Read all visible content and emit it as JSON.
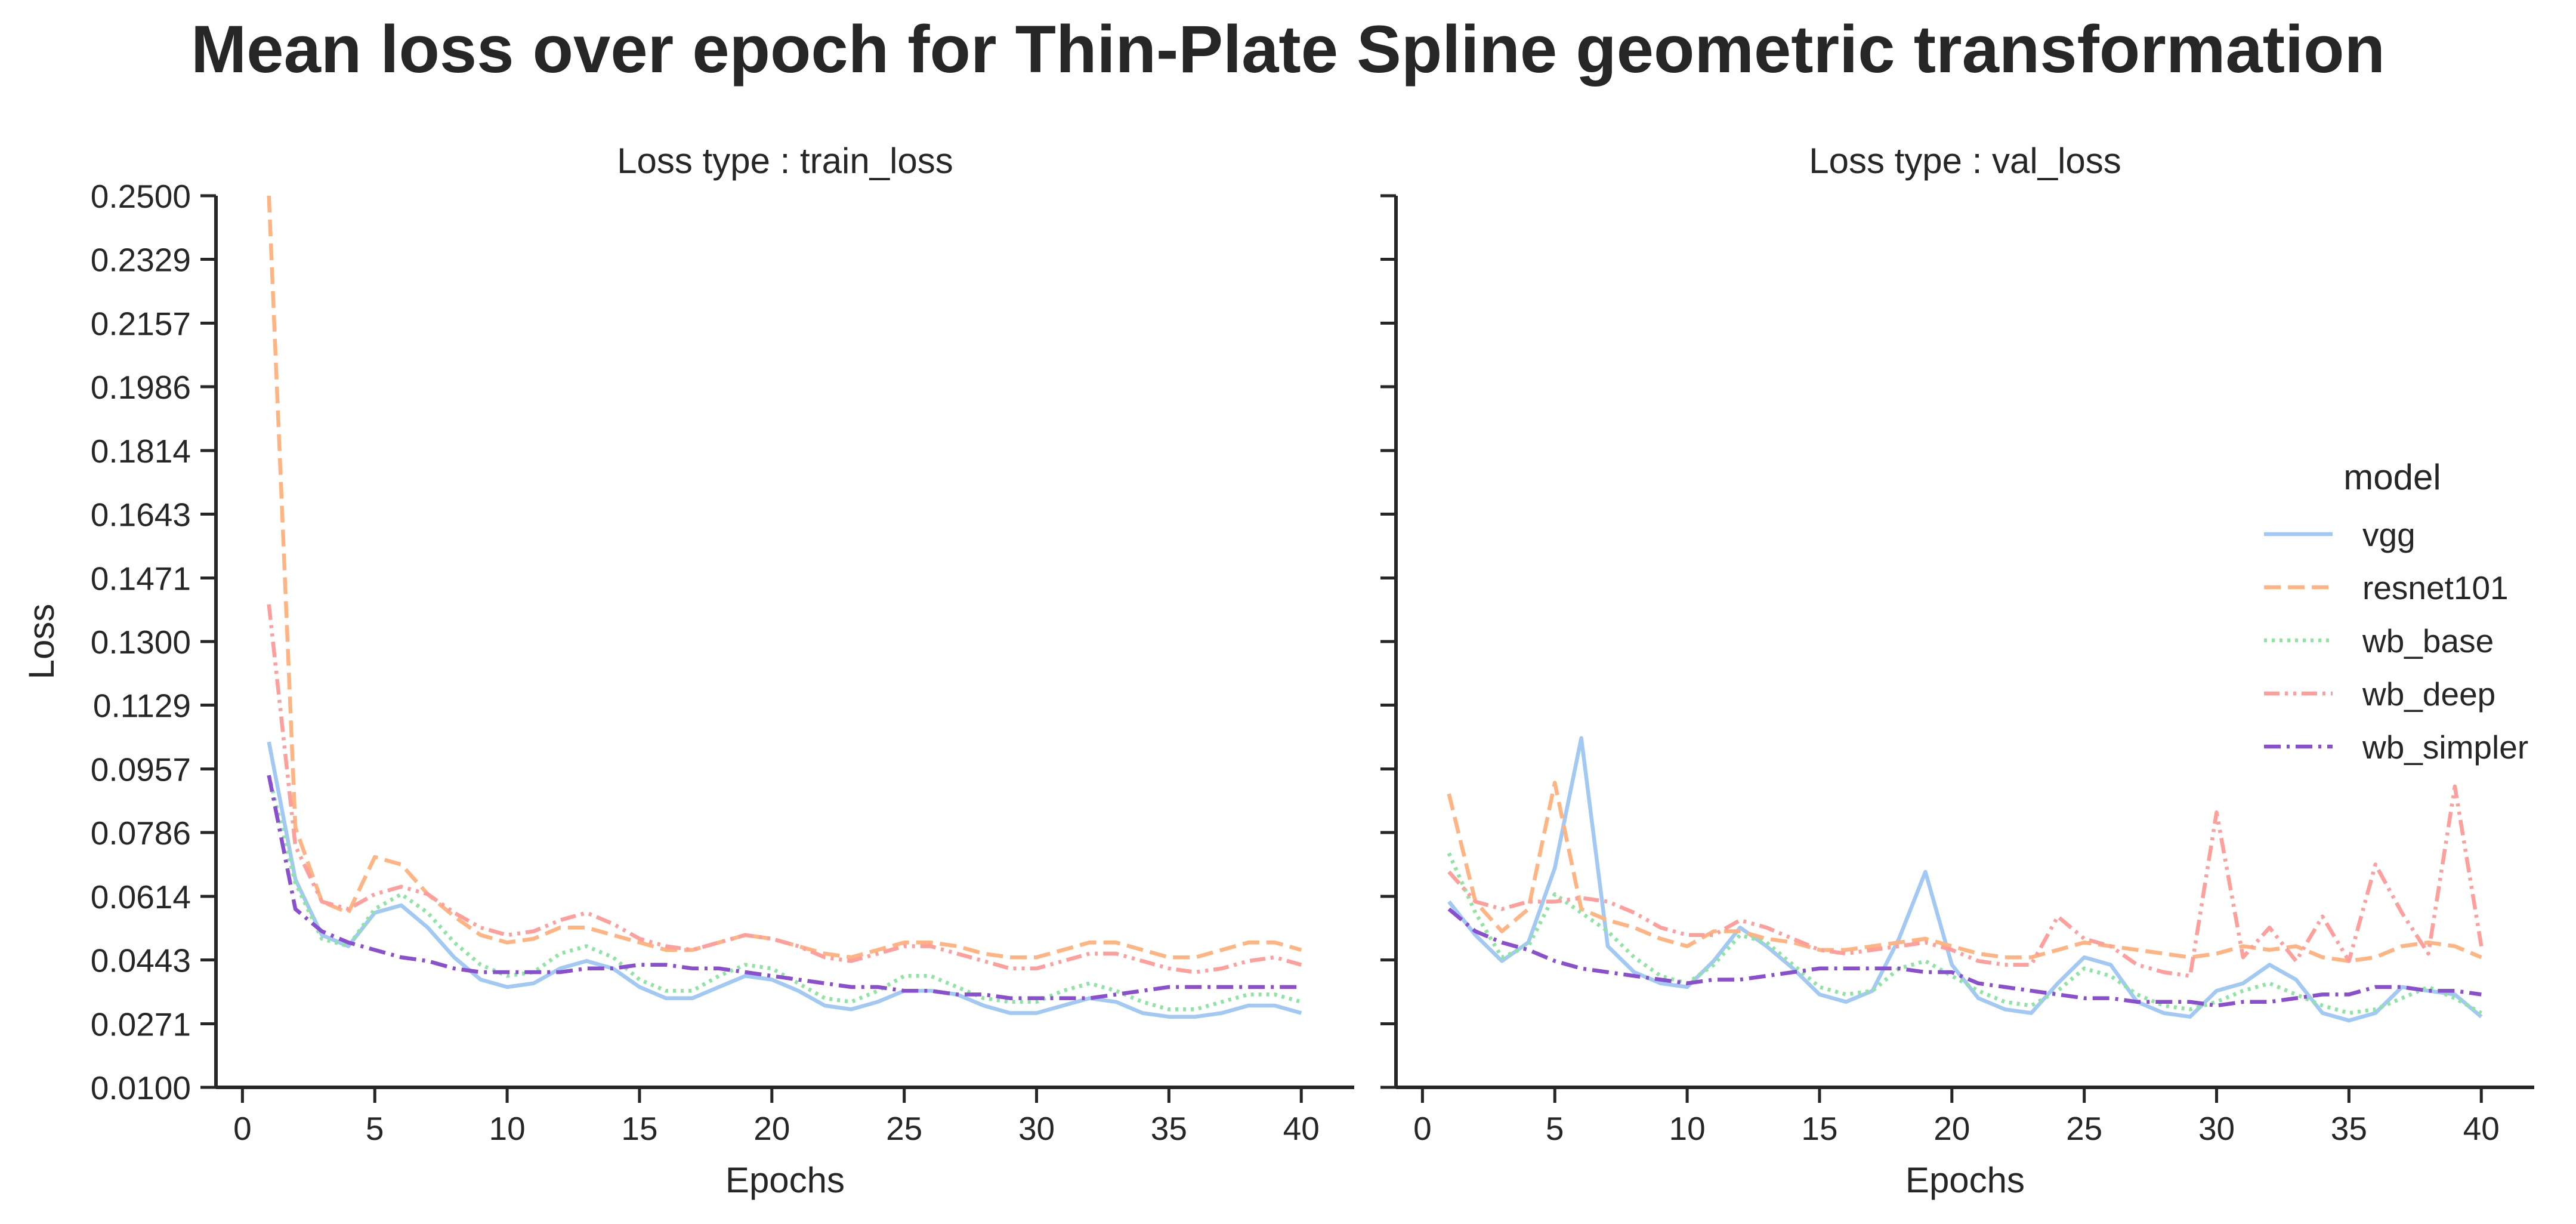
{
  "figure": {
    "title": "Mean loss over epoch for Thin-Plate Spline geometric transformation"
  },
  "chart_data": {
    "type": "line",
    "title": "Mean loss over epoch for Thin-Plate Spline geometric transformation",
    "shared_y": true,
    "ylabel": "Loss",
    "ylim": [
      0.01,
      0.25
    ],
    "yticks": [
      "0.0100",
      "0.0271",
      "0.0443",
      "0.0614",
      "0.0786",
      "0.0957",
      "0.1129",
      "0.1300",
      "0.1471",
      "0.1643",
      "0.1814",
      "0.1986",
      "0.2157",
      "0.2329",
      "0.2500"
    ],
    "xlim": [
      -1,
      42
    ],
    "xticks": [
      0,
      5,
      10,
      15,
      20,
      25,
      30,
      35,
      40
    ],
    "grid": false,
    "legend": {
      "title": "model",
      "position": "right",
      "entries": [
        {
          "label": "vgg",
          "color": "#a1c9f4",
          "dash": "solid"
        },
        {
          "label": "resnet101",
          "color": "#ffb482",
          "dash": "dashed"
        },
        {
          "label": "wb_base",
          "color": "#8de5a1",
          "dash": "dotted"
        },
        {
          "label": "wb_deep",
          "color": "#ff9f9b",
          "dash": "dashdotdot"
        },
        {
          "label": "wb_simpler",
          "color": "#8a4fcf",
          "dash": "dashdot"
        }
      ]
    },
    "panels": [
      {
        "title": "Loss type : train_loss",
        "xlabel": "Epochs",
        "ylabel": "Loss",
        "x": [
          1,
          2,
          3,
          4,
          5,
          6,
          7,
          8,
          9,
          10,
          11,
          12,
          13,
          14,
          15,
          16,
          17,
          18,
          19,
          20,
          21,
          22,
          23,
          24,
          25,
          26,
          27,
          28,
          29,
          30,
          31,
          32,
          33,
          34,
          35,
          36,
          37,
          38,
          39,
          40
        ],
        "series": [
          {
            "name": "vgg",
            "values": [
              0.103,
              0.066,
              0.051,
              0.048,
              0.057,
              0.059,
              0.053,
              0.045,
              0.039,
              0.037,
              0.038,
              0.042,
              0.044,
              0.042,
              0.037,
              0.034,
              0.034,
              0.037,
              0.04,
              0.039,
              0.036,
              0.032,
              0.031,
              0.033,
              0.036,
              0.036,
              0.035,
              0.032,
              0.03,
              0.03,
              0.032,
              0.034,
              0.033,
              0.03,
              0.029,
              0.029,
              0.03,
              0.032,
              0.032,
              0.03
            ]
          },
          {
            "name": "resnet101",
            "values": [
              0.25,
              0.08,
              0.06,
              0.057,
              0.072,
              0.07,
              0.062,
              0.056,
              0.051,
              0.049,
              0.05,
              0.053,
              0.053,
              0.051,
              0.049,
              0.047,
              0.047,
              0.049,
              0.051,
              0.05,
              0.048,
              0.046,
              0.045,
              0.047,
              0.049,
              0.049,
              0.048,
              0.046,
              0.045,
              0.045,
              0.047,
              0.049,
              0.049,
              0.047,
              0.045,
              0.045,
              0.047,
              0.049,
              0.049,
              0.047
            ]
          },
          {
            "name": "wb_base",
            "values": [
              0.094,
              0.065,
              0.05,
              0.048,
              0.058,
              0.062,
              0.057,
              0.049,
              0.043,
              0.04,
              0.041,
              0.046,
              0.048,
              0.045,
              0.039,
              0.036,
              0.036,
              0.04,
              0.043,
              0.042,
              0.038,
              0.034,
              0.033,
              0.036,
              0.04,
              0.04,
              0.037,
              0.034,
              0.033,
              0.033,
              0.036,
              0.038,
              0.036,
              0.033,
              0.031,
              0.031,
              0.033,
              0.035,
              0.035,
              0.033
            ]
          },
          {
            "name": "wb_deep",
            "values": [
              0.14,
              0.075,
              0.06,
              0.058,
              0.062,
              0.064,
              0.062,
              0.057,
              0.053,
              0.051,
              0.052,
              0.055,
              0.057,
              0.054,
              0.05,
              0.048,
              0.047,
              0.049,
              0.051,
              0.05,
              0.048,
              0.045,
              0.044,
              0.046,
              0.048,
              0.048,
              0.046,
              0.044,
              0.042,
              0.042,
              0.044,
              0.046,
              0.046,
              0.044,
              0.042,
              0.041,
              0.042,
              0.044,
              0.045,
              0.043
            ]
          },
          {
            "name": "wb_simpler",
            "values": [
              0.094,
              0.058,
              0.052,
              0.049,
              0.047,
              0.045,
              0.044,
              0.042,
              0.041,
              0.041,
              0.041,
              0.041,
              0.042,
              0.042,
              0.043,
              0.043,
              0.042,
              0.042,
              0.041,
              0.04,
              0.039,
              0.038,
              0.037,
              0.037,
              0.036,
              0.036,
              0.035,
              0.035,
              0.034,
              0.034,
              0.034,
              0.034,
              0.035,
              0.036,
              0.037,
              0.037,
              0.037,
              0.037,
              0.037,
              0.037
            ]
          }
        ]
      },
      {
        "title": "Loss type : val_loss",
        "xlabel": "Epochs",
        "x": [
          1,
          2,
          3,
          4,
          5,
          6,
          7,
          8,
          9,
          10,
          11,
          12,
          13,
          14,
          15,
          16,
          17,
          18,
          19,
          20,
          21,
          22,
          23,
          24,
          25,
          26,
          27,
          28,
          29,
          30,
          31,
          32,
          33,
          34,
          35,
          36,
          37,
          38,
          39,
          40
        ],
        "series": [
          {
            "name": "vgg",
            "values": [
              0.06,
              0.051,
              0.044,
              0.049,
              0.069,
              0.104,
              0.048,
              0.041,
              0.038,
              0.037,
              0.044,
              0.053,
              0.048,
              0.042,
              0.035,
              0.033,
              0.036,
              0.05,
              0.068,
              0.043,
              0.034,
              0.031,
              0.03,
              0.038,
              0.045,
              0.043,
              0.033,
              0.03,
              0.029,
              0.036,
              0.038,
              0.043,
              0.039,
              0.03,
              0.028,
              0.03,
              0.037,
              0.036,
              0.035,
              0.029
            ]
          },
          {
            "name": "resnet101",
            "values": [
              0.089,
              0.06,
              0.052,
              0.058,
              0.092,
              0.058,
              0.055,
              0.053,
              0.05,
              0.048,
              0.052,
              0.052,
              0.05,
              0.049,
              0.047,
              0.047,
              0.048,
              0.049,
              0.05,
              0.048,
              0.046,
              0.045,
              0.045,
              0.047,
              0.049,
              0.048,
              0.047,
              0.046,
              0.045,
              0.046,
              0.048,
              0.047,
              0.048,
              0.045,
              0.044,
              0.045,
              0.048,
              0.049,
              0.048,
              0.045
            ]
          },
          {
            "name": "wb_base",
            "values": [
              0.073,
              0.057,
              0.045,
              0.048,
              0.062,
              0.057,
              0.052,
              0.045,
              0.04,
              0.038,
              0.043,
              0.051,
              0.049,
              0.043,
              0.037,
              0.035,
              0.036,
              0.042,
              0.044,
              0.04,
              0.036,
              0.033,
              0.032,
              0.036,
              0.042,
              0.04,
              0.035,
              0.032,
              0.031,
              0.033,
              0.036,
              0.038,
              0.035,
              0.032,
              0.03,
              0.031,
              0.034,
              0.037,
              0.034,
              0.03
            ]
          },
          {
            "name": "wb_deep",
            "values": [
              0.068,
              0.06,
              0.058,
              0.06,
              0.06,
              0.061,
              0.06,
              0.057,
              0.053,
              0.051,
              0.051,
              0.055,
              0.053,
              0.05,
              0.047,
              0.046,
              0.047,
              0.048,
              0.049,
              0.047,
              0.044,
              0.043,
              0.043,
              0.056,
              0.05,
              0.048,
              0.043,
              0.041,
              0.04,
              0.084,
              0.045,
              0.053,
              0.044,
              0.056,
              0.044,
              0.07,
              0.057,
              0.046,
              0.091,
              0.048
            ]
          },
          {
            "name": "wb_simpler",
            "values": [
              0.058,
              0.052,
              0.049,
              0.047,
              0.044,
              0.042,
              0.041,
              0.04,
              0.039,
              0.038,
              0.039,
              0.039,
              0.04,
              0.041,
              0.042,
              0.042,
              0.042,
              0.042,
              0.041,
              0.041,
              0.038,
              0.037,
              0.036,
              0.035,
              0.034,
              0.034,
              0.033,
              0.033,
              0.033,
              0.032,
              0.033,
              0.033,
              0.034,
              0.035,
              0.035,
              0.037,
              0.037,
              0.036,
              0.036,
              0.035
            ]
          }
        ]
      }
    ]
  }
}
